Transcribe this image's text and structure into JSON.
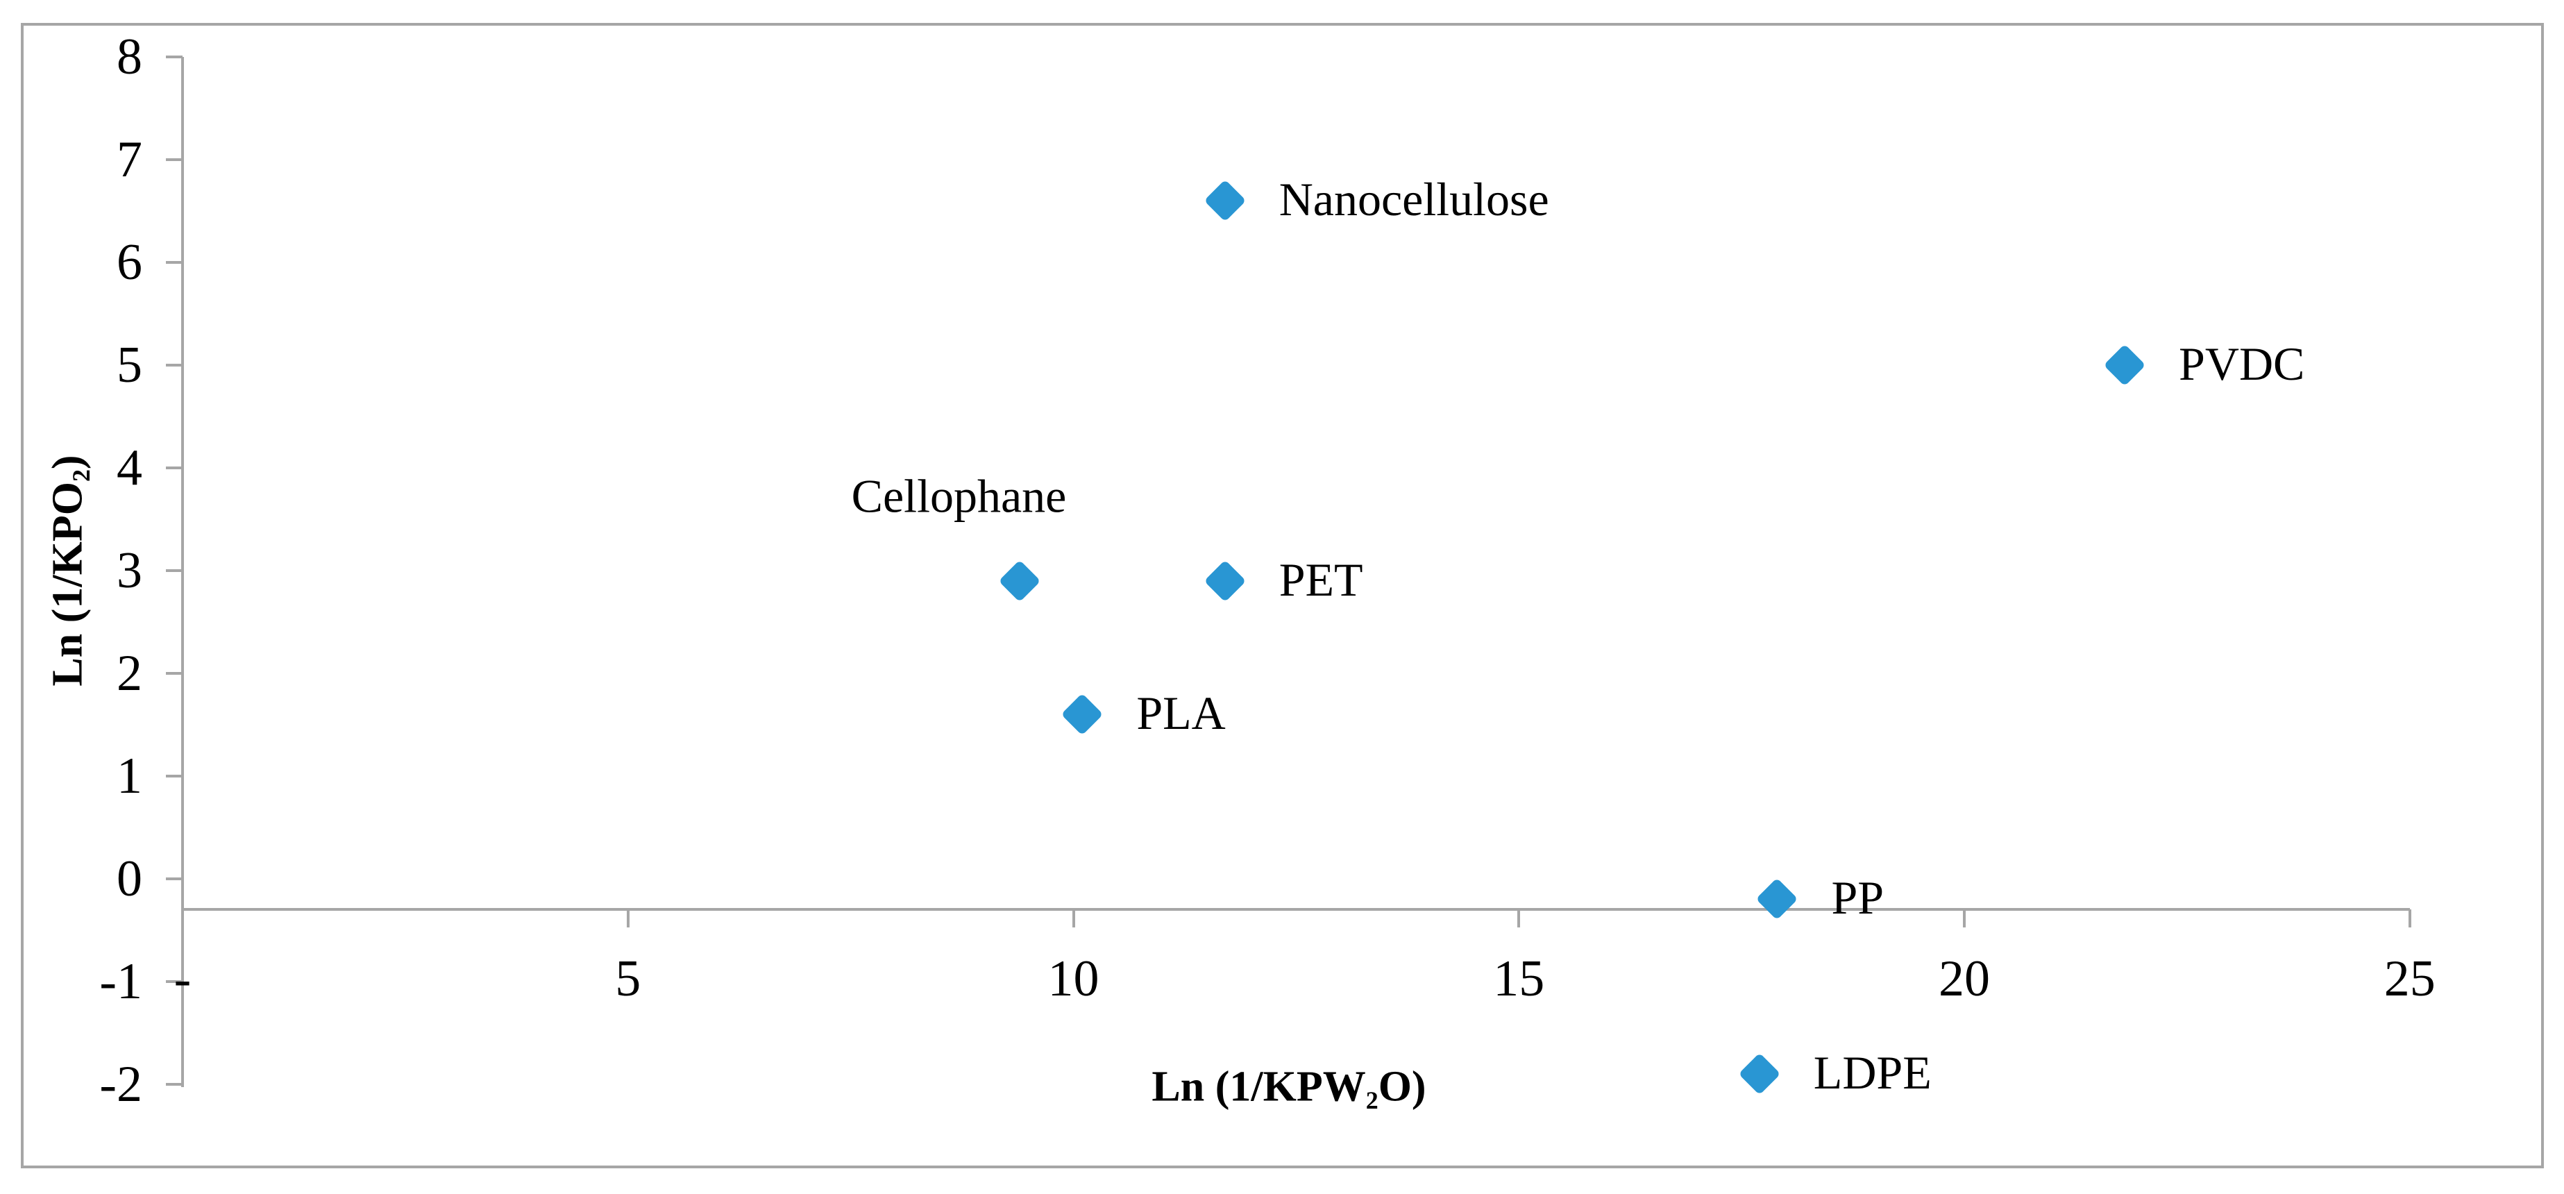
{
  "figure": {
    "background_color": "#ffffff",
    "border_color": "#a6a6a6"
  },
  "chart_data": {
    "type": "scatter",
    "title": "",
    "xlabel": {
      "prefix": "Ln (1/KPW",
      "sub": "2",
      "suffix": "O)"
    },
    "ylabel": {
      "prefix": "Ln (1/KPO",
      "sub": "2",
      "suffix": ")"
    },
    "xlim": [
      0,
      25
    ],
    "ylim": [
      -2,
      8
    ],
    "x_axis_crossing_y": -0.3,
    "grid": false,
    "legend": "none",
    "axis_color": "#a6a6a6",
    "marker_color": "#2996d3",
    "marker_shape": "diamond",
    "x_ticks": [
      {
        "value": 0,
        "label": "-"
      },
      {
        "value": 5,
        "label": "5"
      },
      {
        "value": 10,
        "label": "10"
      },
      {
        "value": 15,
        "label": "15"
      },
      {
        "value": 20,
        "label": "20"
      },
      {
        "value": 25,
        "label": "25"
      }
    ],
    "y_ticks": [
      {
        "value": 8,
        "label": "8"
      },
      {
        "value": 7,
        "label": "7"
      },
      {
        "value": 6,
        "label": "6"
      },
      {
        "value": 5,
        "label": "5"
      },
      {
        "value": 4,
        "label": "4"
      },
      {
        "value": 3,
        "label": "3"
      },
      {
        "value": 2,
        "label": "2"
      },
      {
        "value": 1,
        "label": "1"
      },
      {
        "value": 0,
        "label": "0"
      },
      {
        "value": -1,
        "label": "-1"
      },
      {
        "value": -2,
        "label": "-2"
      }
    ],
    "points": [
      {
        "label": "Nanocellulose",
        "x": 11.7,
        "y": 6.6,
        "label_position": "right"
      },
      {
        "label": "PVDC",
        "x": 21.8,
        "y": 5.0,
        "label_position": "right"
      },
      {
        "label": "Cellophane",
        "x": 9.4,
        "y": 2.9,
        "label_position": "above-left"
      },
      {
        "label": "PET",
        "x": 11.7,
        "y": 2.9,
        "label_position": "right"
      },
      {
        "label": "PLA",
        "x": 10.1,
        "y": 1.6,
        "label_position": "right"
      },
      {
        "label": "PP",
        "x": 17.9,
        "y": -0.2,
        "label_position": "right"
      },
      {
        "label": "LDPE",
        "x": 17.7,
        "y": -1.9,
        "label_position": "right"
      }
    ]
  }
}
